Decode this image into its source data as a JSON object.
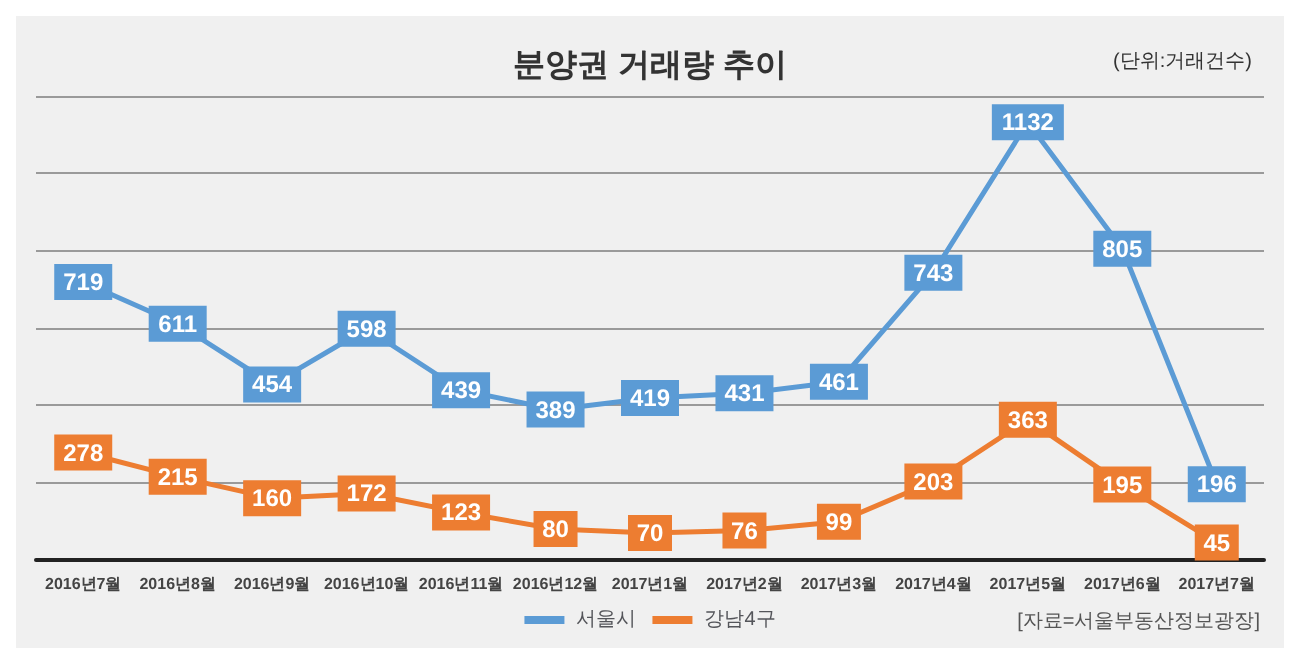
{
  "chart_data": {
    "type": "line",
    "title": "분양권 거래량 추이",
    "annotations": [
      "(단위:거래건수)",
      "[자료=서울부동산정보광장]"
    ],
    "categories": [
      "2016년7월",
      "2016년8월",
      "2016년9월",
      "2016년10월",
      "2016년11월",
      "2016년12월",
      "2017년1월",
      "2017년2월",
      "2017년3월",
      "2017년4월",
      "2017년5월",
      "2017년6월",
      "2017년7월"
    ],
    "series": [
      {
        "name": "서울시",
        "color": "#5b9bd5",
        "values": [
          719,
          611,
          454,
          598,
          439,
          389,
          419,
          431,
          461,
          743,
          1132,
          805,
          196
        ]
      },
      {
        "name": "강남4구",
        "color": "#ed7d31",
        "values": [
          278,
          215,
          160,
          172,
          123,
          80,
          70,
          76,
          99,
          203,
          363,
          195,
          45
        ]
      }
    ],
    "ylim": [
      0,
      1200
    ],
    "yticks": [
      {
        "value": 0,
        "label": null
      },
      {
        "value": 200,
        "label": null
      },
      {
        "value": 400,
        "label": null
      },
      {
        "value": 600,
        "label": null
      },
      {
        "value": 800,
        "label": null
      },
      {
        "value": 1000,
        "label": null
      },
      {
        "value": 1200,
        "label": null
      }
    ],
    "grid": "y",
    "legend": "bottom",
    "data_labels": true,
    "marker": "square",
    "line_style": "solid",
    "tick_labels": "x"
  }
}
